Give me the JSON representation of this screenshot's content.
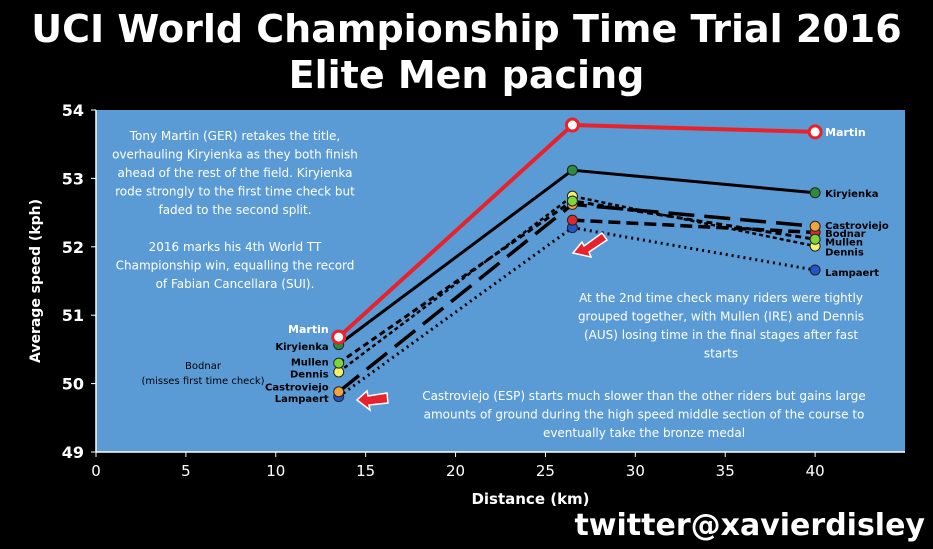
{
  "title_line1": "UCI World Championship Time Trial 2016",
  "title_line2": "Elite Men pacing",
  "watermark": "twitter@xavierdisley",
  "colors": {
    "plot_bg": "#5b9bd5",
    "page_bg": "#000000"
  },
  "chart_data": {
    "type": "line",
    "xlabel": "Distance (km)",
    "ylabel": "Average speed (kph)",
    "xlim": [
      0,
      45
    ],
    "ylim": [
      49,
      54
    ],
    "xticks": [
      0,
      5,
      10,
      15,
      20,
      25,
      30,
      35,
      40
    ],
    "yticks": [
      49,
      50,
      51,
      52,
      53,
      54
    ],
    "grid": false,
    "series": [
      {
        "name": "Martin",
        "color": "#e8222b",
        "marker": "#ffffff",
        "dash": "none",
        "width": 4,
        "x": [
          13.5,
          26.5,
          40
        ],
        "y": [
          50.68,
          53.78,
          53.68
        ]
      },
      {
        "name": "Kiryienka",
        "color": "#000000",
        "marker": "#2e8b3e",
        "dash": "none",
        "width": 3,
        "x": [
          13.5,
          26.5,
          40
        ],
        "y": [
          50.57,
          53.12,
          52.79
        ]
      },
      {
        "name": "Mullen",
        "color": "#000000",
        "marker": "#7fd43a",
        "dash": "6,4",
        "width": 3,
        "x": [
          13.5,
          26.5,
          40
        ],
        "y": [
          50.3,
          52.67,
          52.11
        ]
      },
      {
        "name": "Dennis",
        "color": "#000000",
        "marker": "#f5f06a",
        "dash": "4,3",
        "width": 2.5,
        "x": [
          13.5,
          26.5,
          40
        ],
        "y": [
          50.17,
          52.74,
          52.01
        ]
      },
      {
        "name": "Castroviejo",
        "color": "#000000",
        "marker": "#f4a23c",
        "dash": "26,10",
        "width": 3.5,
        "x": [
          13.5,
          26.5,
          40
        ],
        "y": [
          49.88,
          52.62,
          52.3
        ]
      },
      {
        "name": "Bodnar",
        "color": "#000000",
        "marker": "#d92b2b",
        "dash": "12,6",
        "width": 3.5,
        "x": [
          26.5,
          40
        ],
        "y": [
          52.39,
          52.21
        ]
      },
      {
        "name": "Lampaert",
        "color": "#000000",
        "marker": "#2255c8",
        "dash": "2,4",
        "width": 3,
        "x": [
          13.5,
          26.5,
          40
        ],
        "y": [
          49.81,
          52.28,
          51.66
        ]
      }
    ],
    "end_labels": [
      {
        "text": "Martin",
        "x": 40,
        "y": 53.68,
        "bold": true
      },
      {
        "text": "Kiryienka",
        "x": 40,
        "y": 52.79
      },
      {
        "text": "Castroviejo",
        "x": 40,
        "y": 52.32
      },
      {
        "text": "Bodnar",
        "x": 40,
        "y": 52.2
      },
      {
        "text": "Mullen",
        "x": 40,
        "y": 52.08
      },
      {
        "text": "Dennis",
        "x": 40,
        "y": 51.93
      },
      {
        "text": "Lampaert",
        "x": 40,
        "y": 51.63
      }
    ],
    "start_labels": [
      {
        "text": "Martin",
        "y": 50.8,
        "bold": true
      },
      {
        "text": "Kiryienka",
        "y": 50.55
      },
      {
        "text": "Mullen",
        "y": 50.32
      },
      {
        "text": "Dennis",
        "y": 50.15
      },
      {
        "text": "Castroviejo",
        "y": 49.96
      },
      {
        "text": "Lampaert",
        "y": 49.79
      }
    ],
    "bodnar_note": [
      "Bodnar",
      "(misses first time check)"
    ],
    "annotations": {
      "top_left": [
        "Tony Martin (GER) retakes the title,",
        "overhauling Kiryienka as they both finish",
        "ahead of the rest of the field. Kiryienka",
        "rode strongly to the first time check but",
        "faded to the second split.",
        "",
        "2016 marks his 4th World TT",
        "Championship win, equalling the record",
        "of Fabian Cancellara (SUI)."
      ],
      "mid_right": [
        "At the 2nd time check many riders were tightly",
        "grouped together, with Mullen (IRE) and Dennis",
        "(AUS) losing time in the final stages after fast",
        "starts"
      ],
      "bottom": [
        "Castroviejo (ESP) starts much slower than the other riders but gains large",
        "amounts of ground during the high speed middle section of the course to",
        "eventually take the bronze medal"
      ]
    }
  }
}
